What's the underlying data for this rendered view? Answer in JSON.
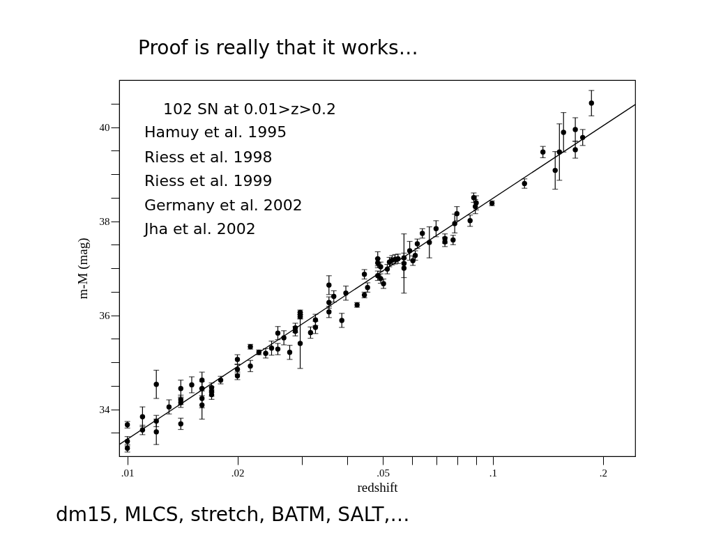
{
  "chart_data": {
    "type": "scatter",
    "title": "Proof is really that it works…",
    "xlabel": "redshift",
    "ylabel": "m-M (mag)",
    "log": "x",
    "marker": "circle",
    "xlim": [
      0.0095,
      0.245
    ],
    "ylim": [
      33,
      41
    ],
    "xticks": [
      {
        "value": 0.01,
        "label": ".01"
      },
      {
        "value": 0.02,
        "label": ".02"
      },
      {
        "value": 0.03,
        "label": null
      },
      {
        "value": 0.04,
        "label": null
      },
      {
        "value": 0.05,
        "label": ".05"
      },
      {
        "value": 0.06,
        "label": null
      },
      {
        "value": 0.07,
        "label": null
      },
      {
        "value": 0.08,
        "label": null
      },
      {
        "value": 0.09,
        "label": null
      },
      {
        "value": 0.1,
        "label": ".1"
      },
      {
        "value": 0.2,
        "label": ".2"
      }
    ],
    "yticks": [
      {
        "value": 33.5,
        "label": null
      },
      34,
      {
        "value": 34.5,
        "label": null
      },
      {
        "value": 35,
        "label": null
      },
      {
        "value": 35.5,
        "label": null
      },
      36,
      {
        "value": 36.5,
        "label": null
      },
      {
        "value": 37,
        "label": null
      },
      {
        "value": 37.5,
        "label": null
      },
      38,
      {
        "value": 38.5,
        "label": null
      },
      {
        "value": 39,
        "label": null
      },
      {
        "value": 39.5,
        "label": null
      },
      40,
      {
        "value": 40.5,
        "label": null
      }
    ],
    "annotations": [
      "102 SN at 0.01>z>0.2",
      "Hamuy et al. 1995",
      "Riess et al. 1998",
      "Riess et al. 1999",
      "Germany et al. 2002",
      "Jha et al. 2002",
      "dm15, MLCS, stretch, BATM, SALT,…"
    ],
    "series": [
      {
        "color": "#000000",
        "x": [
          0.01,
          0.01,
          0.01,
          0.011,
          0.011,
          0.012,
          0.012,
          0.012,
          0.013,
          0.014,
          0.014,
          0.014,
          0.014,
          0.015,
          0.016,
          0.016,
          0.016,
          0.016,
          0.017,
          0.017,
          0.017,
          0.018,
          0.02,
          0.02,
          0.02,
          0.0217,
          0.0217,
          0.0229,
          0.0239,
          0.0248,
          0.0258,
          0.0258,
          0.0268,
          0.0278,
          0.0288,
          0.0288,
          0.0297,
          0.0297,
          0.0297,
          0.0297,
          0.0317,
          0.0327,
          0.0327,
          0.0356,
          0.0356,
          0.0356,
          0.0367,
          0.0386,
          0.0396,
          0.0425,
          0.0445,
          0.0445,
          0.0454,
          0.0484,
          0.0484,
          0.0484,
          0.0493,
          0.0493,
          0.0502,
          0.0514,
          0.0521,
          0.053,
          0.054,
          0.055,
          0.0571,
          0.0571,
          0.0571,
          0.0592,
          0.0604,
          0.0613,
          0.0621,
          0.0641,
          0.067,
          0.0699,
          0.0739,
          0.0739,
          0.0778,
          0.0786,
          0.0797,
          0.0866,
          0.0886,
          0.0895,
          0.09,
          0.0994,
          0.122,
          0.137,
          0.148,
          0.152,
          0.156,
          0.168,
          0.168,
          0.176,
          0.186
        ],
        "values": [
          33.67,
          33.32,
          33.17,
          33.84,
          33.56,
          34.53,
          33.75,
          33.52,
          34.05,
          34.44,
          34.2,
          34.14,
          33.69,
          34.52,
          34.62,
          34.44,
          34.23,
          34.09,
          34.46,
          34.38,
          34.31,
          34.62,
          35.06,
          34.85,
          34.71,
          35.33,
          34.92,
          35.21,
          35.19,
          35.3,
          35.62,
          35.28,
          35.52,
          35.21,
          35.73,
          35.66,
          36.06,
          36.01,
          35.97,
          35.4,
          35.63,
          35.9,
          35.74,
          36.64,
          36.27,
          36.07,
          36.4,
          35.89,
          36.47,
          36.22,
          36.87,
          36.43,
          36.59,
          37.2,
          37.11,
          36.84,
          37.03,
          36.78,
          36.67,
          36.98,
          37.13,
          37.17,
          37.19,
          37.2,
          37.22,
          37.1,
          37.0,
          37.37,
          37.16,
          37.27,
          37.52,
          37.74,
          37.55,
          37.84,
          37.63,
          37.56,
          37.6,
          37.95,
          38.16,
          38.01,
          38.5,
          38.31,
          38.39,
          38.38,
          38.8,
          39.47,
          39.08,
          39.47,
          39.89,
          39.95,
          39.52,
          39.78,
          40.51
        ],
        "errors": [
          0.07,
          0.1,
          0.08,
          0.21,
          0.1,
          0.3,
          0.12,
          0.27,
          0.15,
          0.18,
          0.1,
          0.1,
          0.12,
          0.17,
          0.17,
          0.15,
          0.2,
          0.3,
          0.1,
          0.1,
          0.1,
          0.08,
          0.1,
          0.1,
          0.08,
          0.05,
          0.12,
          0.05,
          0.1,
          0.15,
          0.14,
          0.12,
          0.15,
          0.15,
          0.1,
          0.1,
          0.05,
          0.05,
          0.05,
          0.53,
          0.12,
          0.12,
          0.13,
          0.2,
          0.12,
          0.12,
          0.12,
          0.15,
          0.15,
          0.05,
          0.1,
          0.06,
          0.1,
          0.15,
          0.1,
          0.1,
          0.1,
          0.1,
          0.1,
          0.1,
          0.1,
          0.1,
          0.1,
          0.1,
          0.1,
          0.63,
          0.2,
          0.2,
          0.1,
          0.1,
          0.1,
          0.1,
          0.33,
          0.17,
          0.1,
          0.1,
          0.1,
          0.2,
          0.15,
          0.12,
          0.1,
          0.15,
          0.15,
          0.05,
          0.1,
          0.12,
          0.4,
          0.6,
          0.42,
          0.25,
          0.18,
          0.17,
          0.27
        ]
      },
      {
        "type": "line",
        "marker": "none",
        "color": "#000000",
        "x": [
          0.0095,
          0.245
        ],
        "values": [
          33.25,
          40.48
        ]
      }
    ]
  }
}
